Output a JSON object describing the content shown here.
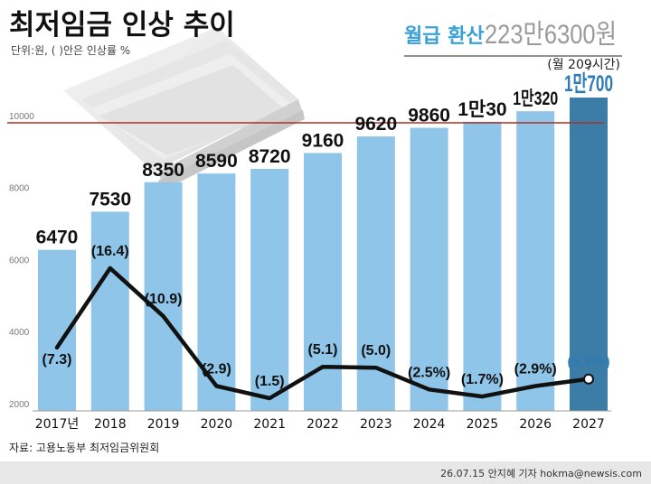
{
  "title": "최저임금 인상 추이",
  "unit_note": "단위:원, ( )안은 인상률 %",
  "monthly": {
    "label": "월급 환산",
    "value": "223만6300원",
    "hours": "(월 209시간)"
  },
  "source": "자료: 고용노동부 최저임금위원회",
  "credit": "26.07.15 안지혜 기자 hokma@newsis.com",
  "colors": {
    "bar": "#8ec5e8",
    "bar_highlight": "#3b7da6",
    "highlight_text": "#2f7bb5",
    "accent_title": "#3aa0d8",
    "reference_line": "#a93226",
    "line": "#111111",
    "footer_bg": "#e7e7e7"
  },
  "chart_data": {
    "type": "bar",
    "categories": [
      "2017년",
      "2018",
      "2019",
      "2020",
      "2021",
      "2022",
      "2023",
      "2024",
      "2025",
      "2026",
      "2027"
    ],
    "values": [
      6470,
      7530,
      8350,
      8590,
      8720,
      9160,
      9620,
      9860,
      10030,
      10320,
      10700
    ],
    "value_labels": [
      "6470",
      "7530",
      "8350",
      "8590",
      "8720",
      "9160",
      "9620",
      "9860",
      "1만30",
      "1만320",
      "1만700"
    ],
    "ylim": [
      2000,
      10400
    ],
    "yticks": [
      {
        "value": 2000,
        "label": "2000"
      },
      {
        "value": 4000,
        "label": "4000"
      },
      {
        "value": 6000,
        "label": "6000"
      },
      {
        "value": 8000,
        "label": "8000"
      },
      {
        "value": 10000,
        "label": "10000"
      }
    ],
    "reference_line": 10000,
    "highlight_index": 10,
    "line_series": {
      "values": [
        7.3,
        16.4,
        10.9,
        2.9,
        1.5,
        5.1,
        5.0,
        2.5,
        1.7,
        2.9,
        3.7
      ],
      "labels": [
        "(7.3)",
        "(16.4)",
        "(10.9)",
        "(2.9)",
        "(1.5)",
        "(5.1)",
        "(5.0)",
        "(2.5%)",
        "(1.7%)",
        "(2.9%)",
        "(3.7%)"
      ],
      "ylim": [
        0,
        20
      ]
    }
  }
}
